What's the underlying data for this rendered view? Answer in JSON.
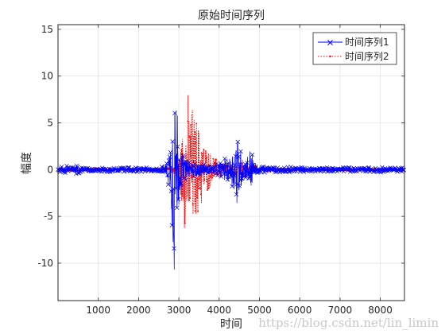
{
  "chart_data": {
    "type": "line",
    "title": "原始时间序列",
    "xlabel": "时间",
    "ylabel": "幅度",
    "xlim": [
      0,
      8600
    ],
    "ylim": [
      -14,
      15.5
    ],
    "xticks": [
      1000,
      2000,
      3000,
      4000,
      5000,
      6000,
      7000,
      8000
    ],
    "yticks": [
      -10,
      -5,
      0,
      5,
      10,
      15
    ],
    "grid": true,
    "legend_position": "top-right",
    "series": [
      {
        "name": "时间序列1",
        "color": "#0000ff",
        "marker": "x",
        "style": "solid",
        "envelope": [
          [
            0,
            0.3
          ],
          [
            150,
            0.5
          ],
          [
            300,
            0.6
          ],
          [
            500,
            0.45
          ],
          [
            700,
            0.3
          ],
          [
            900,
            0.25
          ],
          [
            1200,
            0.3
          ],
          [
            1500,
            0.25
          ],
          [
            1800,
            0.3
          ],
          [
            2100,
            0.3
          ],
          [
            2400,
            0.25
          ],
          [
            2600,
            0.5
          ],
          [
            2700,
            1.0
          ],
          [
            2780,
            3.0
          ],
          [
            2830,
            7.5
          ],
          [
            2870,
            13.8
          ],
          [
            2910,
            12.5
          ],
          [
            2950,
            9.0
          ],
          [
            3000,
            5.0
          ],
          [
            3050,
            3.0
          ],
          [
            3100,
            2.0
          ],
          [
            3200,
            1.2
          ],
          [
            3350,
            0.9
          ],
          [
            3500,
            0.8
          ],
          [
            3700,
            0.6
          ],
          [
            3900,
            0.5
          ],
          [
            4050,
            1.0
          ],
          [
            4200,
            1.5
          ],
          [
            4350,
            2.5
          ],
          [
            4430,
            5.2
          ],
          [
            4470,
            4.5
          ],
          [
            4520,
            3.0
          ],
          [
            4580,
            1.5
          ],
          [
            4650,
            1.0
          ],
          [
            4720,
            2.0
          ],
          [
            4800,
            3.0
          ],
          [
            4850,
            1.2
          ],
          [
            4950,
            0.6
          ],
          [
            5200,
            0.4
          ],
          [
            5600,
            0.3
          ],
          [
            6000,
            0.3
          ],
          [
            6500,
            0.25
          ],
          [
            7000,
            0.3
          ],
          [
            7500,
            0.25
          ],
          [
            8000,
            0.3
          ],
          [
            8600,
            0.3
          ]
        ]
      },
      {
        "name": "时间序列2",
        "color": "#ff0000",
        "marker": ".",
        "style": "dotted",
        "envelope": [
          [
            0,
            0.15
          ],
          [
            500,
            0.15
          ],
          [
            1000,
            0.2
          ],
          [
            1500,
            0.15
          ],
          [
            2000,
            0.15
          ],
          [
            2600,
            0.2
          ],
          [
            2900,
            0.5
          ],
          [
            3000,
            1.5
          ],
          [
            3050,
            3.0
          ],
          [
            3100,
            5.5
          ],
          [
            3180,
            8.5
          ],
          [
            3250,
            8.8
          ],
          [
            3350,
            7.5
          ],
          [
            3450,
            6.0
          ],
          [
            3550,
            4.5
          ],
          [
            3650,
            3.0
          ],
          [
            3800,
            2.0
          ],
          [
            3950,
            1.2
          ],
          [
            4100,
            0.9
          ],
          [
            4300,
            0.8
          ],
          [
            4450,
            1.0
          ],
          [
            4600,
            1.2
          ],
          [
            4750,
            0.8
          ],
          [
            4900,
            0.4
          ],
          [
            5100,
            0.25
          ],
          [
            5500,
            0.2
          ],
          [
            6000,
            0.15
          ],
          [
            7000,
            0.15
          ],
          [
            8000,
            0.15
          ],
          [
            8600,
            0.15
          ]
        ]
      }
    ]
  },
  "watermark": "https://blog.csdn.net/lin_limin"
}
